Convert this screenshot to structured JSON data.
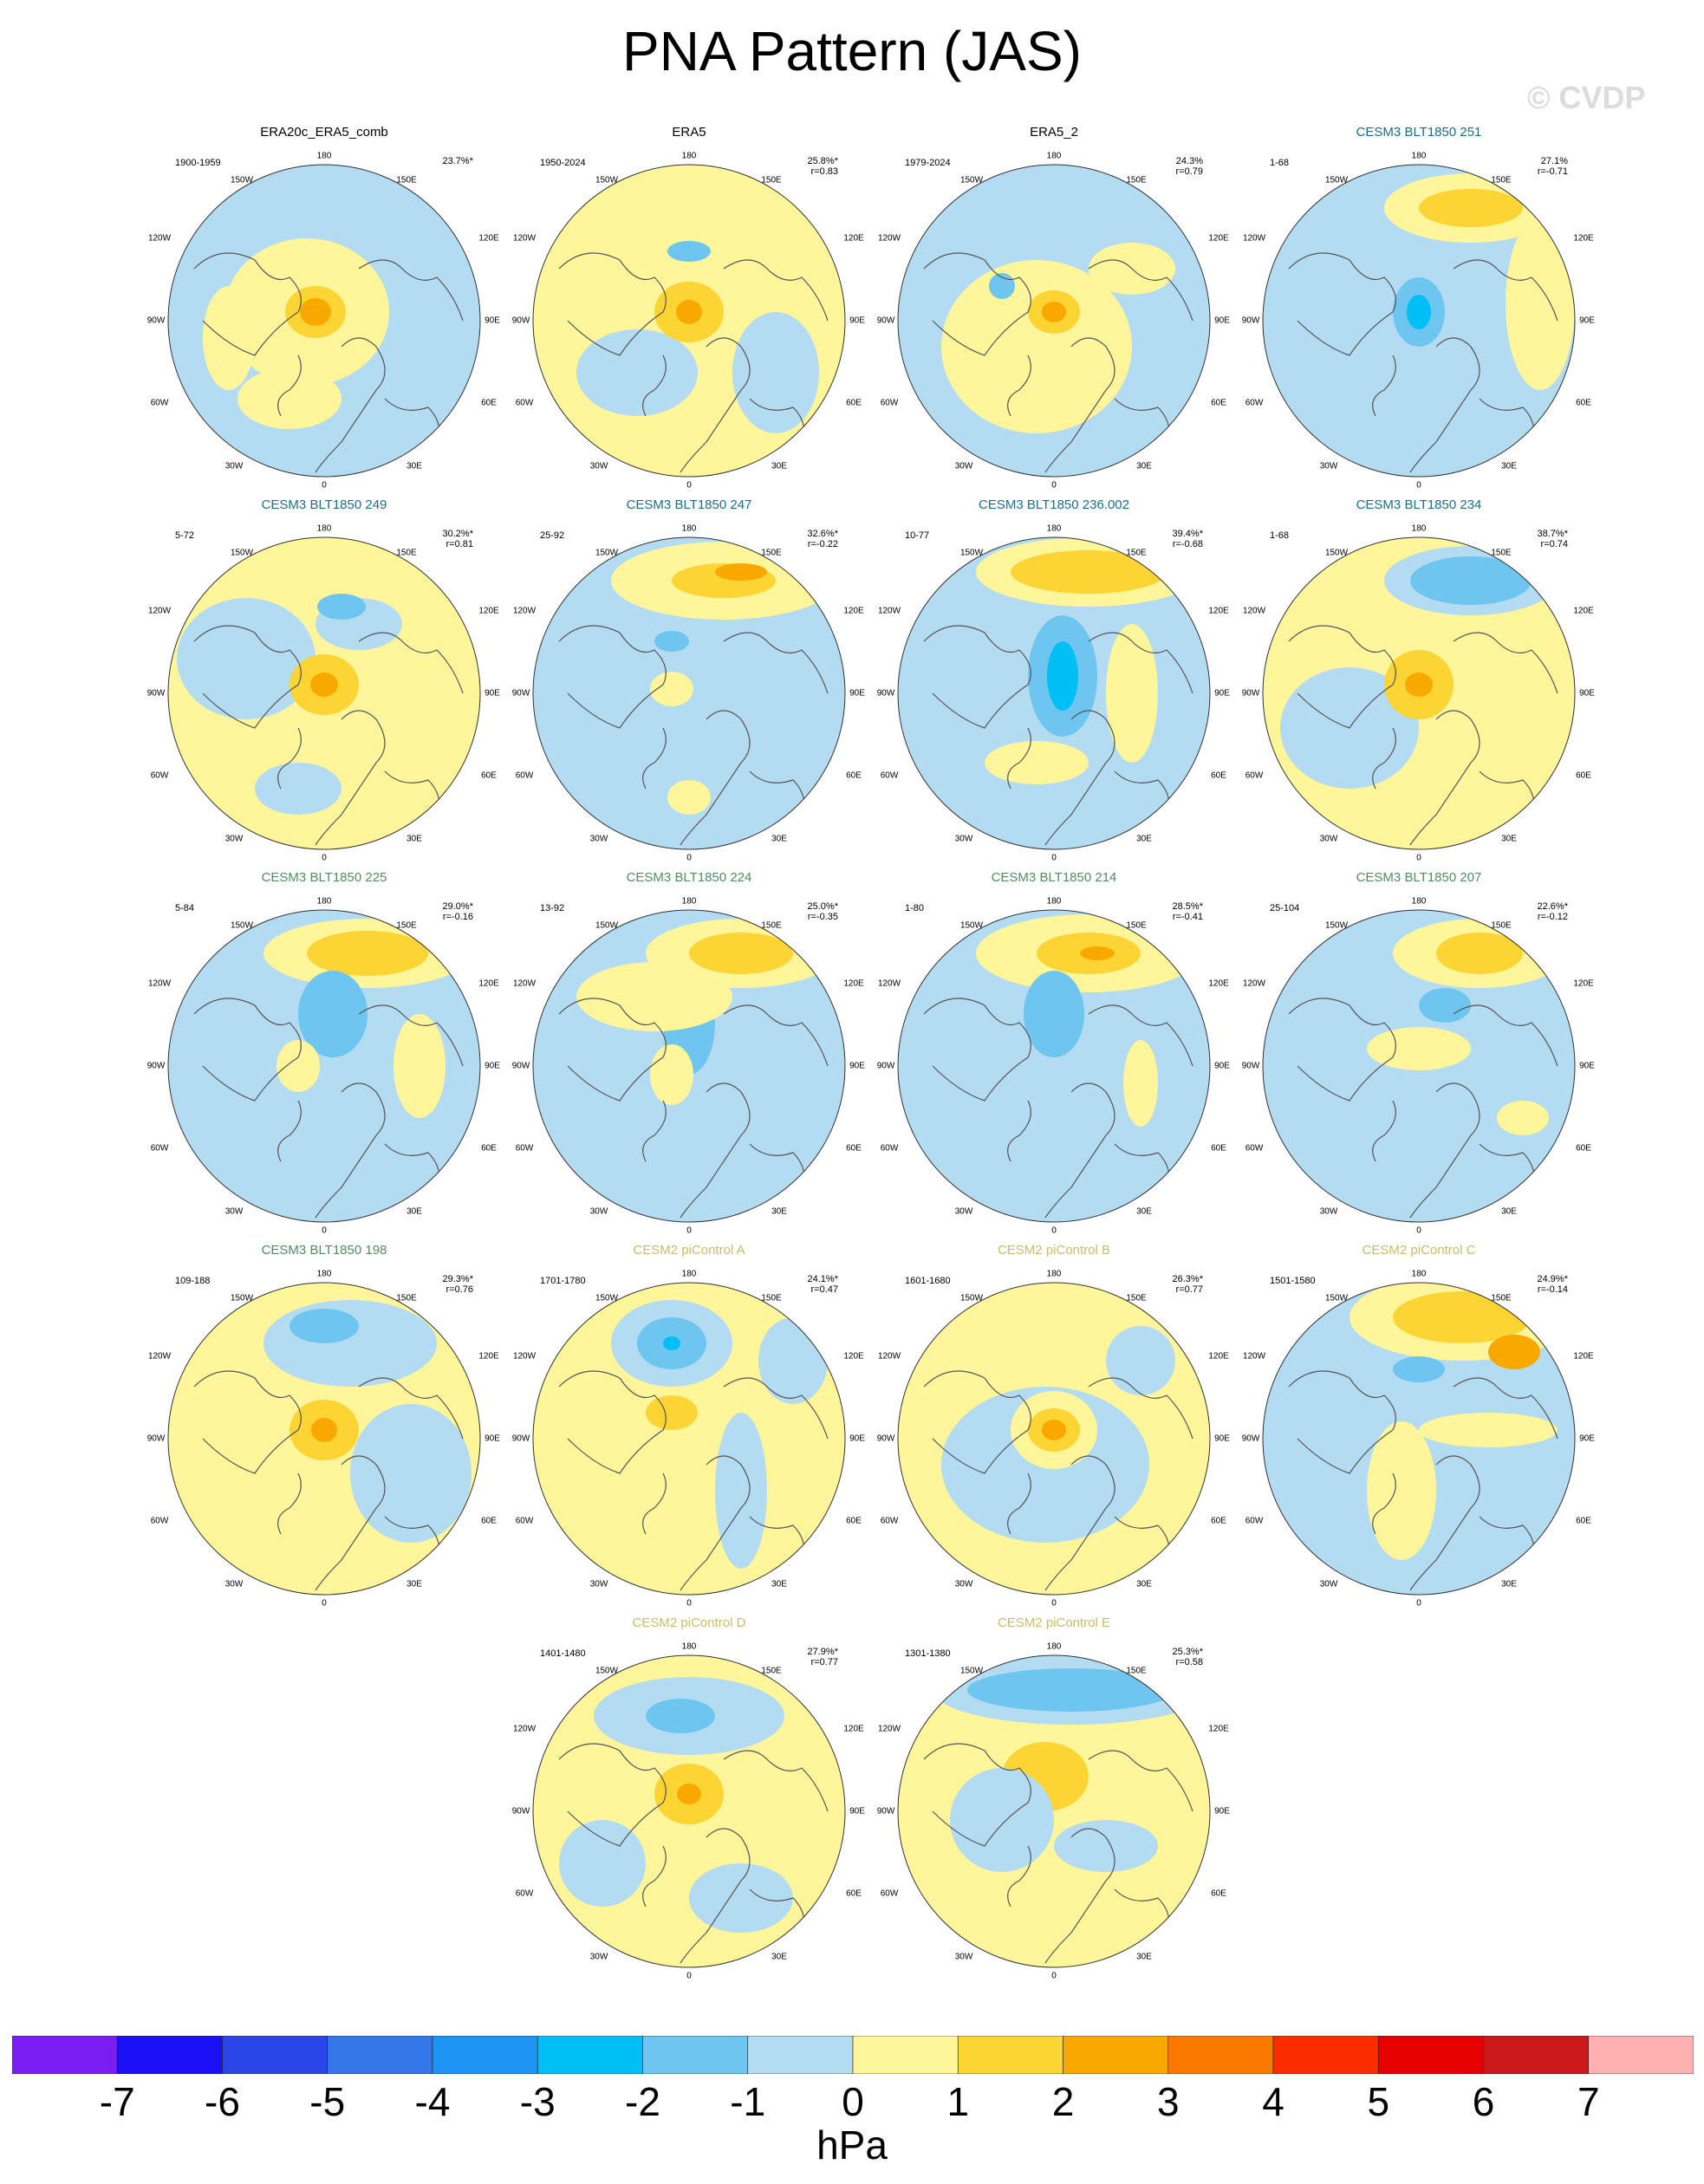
{
  "title": "PNA Pattern (JAS)",
  "watermark": "© CVDP",
  "colors": {
    "title_black": "#000000",
    "title_cesm3_teal": "#1a6e8c",
    "title_cesm3_green": "#4f8f5f",
    "title_cesm2_tan": "#c8bd6a",
    "ocean_lightblue": "#b3dbf2",
    "positive_yellow": "#fff59a"
  },
  "panels": [
    {
      "title": "ERA20c_ERA5_comb",
      "title_color": "#000000",
      "years": "1900-1959",
      "variance": "23.7%*",
      "r": ""
    },
    {
      "title": "ERA5",
      "title_color": "#000000",
      "years": "1950-2024",
      "variance": "25.8%*",
      "r": "r=0.83"
    },
    {
      "title": "ERA5_2",
      "title_color": "#000000",
      "years": "1979-2024",
      "variance": "24.3%",
      "r": "r=0.79"
    },
    {
      "title": "CESM3 BLT1850 251",
      "title_color": "#1a6e8c",
      "years": "1-68",
      "variance": "27.1%",
      "r": "r=-0.71"
    },
    {
      "title": "CESM3 BLT1850 249",
      "title_color": "#1a6e8c",
      "years": "5-72",
      "variance": "30.2%*",
      "r": "r=0.81"
    },
    {
      "title": "CESM3 BLT1850 247",
      "title_color": "#1a6e8c",
      "years": "25-92",
      "variance": "32.6%*",
      "r": "r=-0.22"
    },
    {
      "title": "CESM3 BLT1850 236.002",
      "title_color": "#1a6e8c",
      "years": "10-77",
      "variance": "39.4%*",
      "r": "r=-0.68"
    },
    {
      "title": "CESM3 BLT1850 234",
      "title_color": "#1a6e8c",
      "years": "1-68",
      "variance": "38.7%*",
      "r": "r=0.74"
    },
    {
      "title": "CESM3 BLT1850 225",
      "title_color": "#4f8f5f",
      "years": "5-84",
      "variance": "29.0%*",
      "r": "r=-0.16"
    },
    {
      "title": "CESM3 BLT1850 224",
      "title_color": "#4f8f5f",
      "years": "13-92",
      "variance": "25.0%*",
      "r": "r=-0.35"
    },
    {
      "title": "CESM3 BLT1850 214",
      "title_color": "#4f8f5f",
      "years": "1-80",
      "variance": "28.5%*",
      "r": "r=-0.41"
    },
    {
      "title": "CESM3 BLT1850 207",
      "title_color": "#4f8f5f",
      "years": "25-104",
      "variance": "22.6%*",
      "r": "r=-0.12"
    },
    {
      "title": "CESM3 BLT1850 198",
      "title_color": "#4f8f5f",
      "years": "109-188",
      "variance": "29.3%*",
      "r": "r=0.76"
    },
    {
      "title": "CESM2 piControl A",
      "title_color": "#c8bd6a",
      "years": "1701-1780",
      "variance": "24.1%*",
      "r": "r=0.47"
    },
    {
      "title": "CESM2 piControl B",
      "title_color": "#c8bd6a",
      "years": "1601-1680",
      "variance": "26.3%*",
      "r": "r=0.77"
    },
    {
      "title": "CESM2 piControl C",
      "title_color": "#c8bd6a",
      "years": "1501-1580",
      "variance": "24.9%*",
      "r": "r=-0.14"
    },
    {
      "title": "CESM2 piControl D",
      "title_color": "#c8bd6a",
      "years": "1401-1480",
      "variance": "27.9%*",
      "r": "r=0.77"
    },
    {
      "title": "CESM2 piControl E",
      "title_color": "#c8bd6a",
      "years": "1301-1380",
      "variance": "25.3%*",
      "r": "r=0.58"
    }
  ],
  "lon_labels": {
    "top": "180",
    "top_left": "150W",
    "top_right": "150E",
    "upper_left": "120W",
    "upper_right": "120E",
    "left": "90W",
    "right": "90E",
    "lower_left": "60W",
    "lower_right": "60E",
    "bottom_left": "30W",
    "bottom_right": "30E",
    "bottom": "0"
  },
  "colorbar": {
    "colors": [
      "#7b1cf2",
      "#1a0ff5",
      "#2a45e8",
      "#3477e8",
      "#1f93f2",
      "#00bff5",
      "#6ec6f0",
      "#b3dbf2",
      "#fff59a",
      "#fcd535",
      "#f9a800",
      "#fa7a00",
      "#fb2c00",
      "#e60000",
      "#cc1818",
      "#ffb0b0"
    ],
    "labels": [
      "-7",
      "-6",
      "-5",
      "-4",
      "-3",
      "-2",
      "-1",
      "0",
      "1",
      "2",
      "3",
      "4",
      "5",
      "6",
      "7"
    ],
    "unit": "hPa"
  }
}
